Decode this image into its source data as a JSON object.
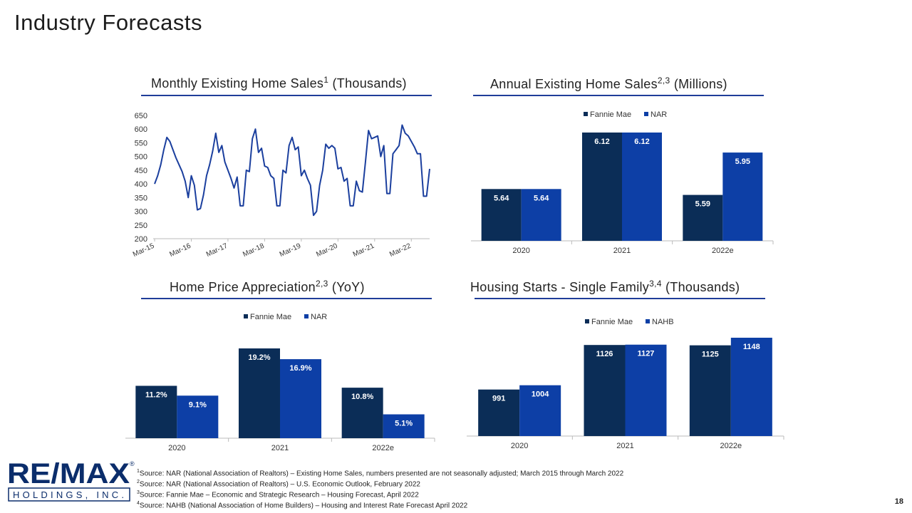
{
  "page": {
    "title": "Industry Forecasts",
    "page_number": "18"
  },
  "colors": {
    "fannie_mae": "#0b2d57",
    "nar": "#0d3fa6",
    "line": "#1b3f9e",
    "rule": "#1f3d99"
  },
  "charts": {
    "monthly": {
      "title": "Monthly Existing Home Sales",
      "sup": "1",
      "unit": "(Thousands)"
    },
    "annual": {
      "title": "Annual Existing Home Sales",
      "sup": "2,3",
      "unit": "(Millions)"
    },
    "hpa": {
      "title": "Home Price Appreciation",
      "sup": "2,3",
      "unit": "(YoY)"
    },
    "starts": {
      "title": "Housing Starts - Single Family",
      "sup": "3,4",
      "unit": "(Thousands)"
    }
  },
  "chart_data": [
    {
      "type": "line",
      "title": "Monthly Existing Home Sales (Thousands)",
      "x_tick_labels": [
        "Mar-15",
        "Mar-16",
        "Mar-17",
        "Mar-18",
        "Mar-19",
        "Mar-20",
        "Mar-21",
        "Mar-22"
      ],
      "ylim": [
        200,
        650
      ],
      "y_ticks": [
        200,
        250,
        300,
        350,
        400,
        450,
        500,
        550,
        600,
        650
      ],
      "series": [
        {
          "values": [
            400,
            430,
            470,
            525,
            570,
            555,
            525,
            495,
            470,
            445,
            410,
            350,
            430,
            395,
            305,
            310,
            360,
            430,
            470,
            520,
            585,
            515,
            540,
            480,
            450,
            420,
            385,
            425,
            320,
            320,
            450,
            445,
            565,
            600,
            515,
            530,
            465,
            460,
            430,
            420,
            320,
            320,
            450,
            440,
            540,
            570,
            525,
            535,
            430,
            450,
            420,
            395,
            285,
            300,
            395,
            450,
            545,
            530,
            540,
            530,
            455,
            460,
            410,
            420,
            320,
            320,
            410,
            375,
            370,
            480,
            595,
            565,
            570,
            575,
            500,
            540,
            365,
            365,
            510,
            525,
            540,
            615,
            585,
            575,
            555,
            535,
            510,
            510,
            355,
            355,
            455
          ]
        }
      ]
    },
    {
      "type": "bar",
      "title": "Annual Existing Home Sales (Millions)",
      "categories": [
        "2020",
        "2021",
        "2022e"
      ],
      "series": [
        {
          "name": "Fannie Mae",
          "values": [
            5.64,
            6.12,
            5.59
          ]
        },
        {
          "name": "NAR",
          "values": [
            5.64,
            6.12,
            5.95
          ]
        }
      ],
      "labels": [
        [
          "5.64",
          "6.12",
          "5.59"
        ],
        [
          "5.64",
          "6.12",
          "5.95"
        ]
      ],
      "legend": "top"
    },
    {
      "type": "bar",
      "title": "Home Price Appreciation (YoY)",
      "categories": [
        "2020",
        "2021",
        "2022e"
      ],
      "series": [
        {
          "name": "Fannie Mae",
          "values": [
            11.2,
            19.2,
            10.8
          ]
        },
        {
          "name": "NAR",
          "values": [
            9.1,
            16.9,
            5.1
          ]
        }
      ],
      "labels": [
        [
          "11.2%",
          "19.2%",
          "10.8%"
        ],
        [
          "9.1%",
          "16.9%",
          "5.1%"
        ]
      ],
      "legend": "top"
    },
    {
      "type": "bar",
      "title": "Housing Starts - Single Family (Thousands)",
      "categories": [
        "2020",
        "2021",
        "2022e"
      ],
      "series": [
        {
          "name": "Fannie Mae",
          "values": [
            991,
            1126,
            1125
          ]
        },
        {
          "name": "NAHB",
          "values": [
            1004,
            1127,
            1148
          ]
        }
      ],
      "labels": [
        [
          "991",
          "1126",
          "1125"
        ],
        [
          "1004",
          "1127",
          "1148"
        ]
      ],
      "legend": "top"
    }
  ],
  "logo": {
    "brand": "RE/MAX",
    "sub": "HOLDINGS, INC.",
    "mark": "®"
  },
  "footnotes": [
    {
      "num": "1",
      "text": "Source: NAR (National Association of Realtors) – Existing Home Sales, numbers presented are not seasonally adjusted; March 2015 through March 2022"
    },
    {
      "num": "2",
      "text": "Source: NAR (National Association of Realtors) – U.S. Economic Outlook, February 2022"
    },
    {
      "num": "3",
      "text": "Source: Fannie Mae – Economic and Strategic Research – Housing Forecast, April 2022"
    },
    {
      "num": "4",
      "text": "Source: NAHB (National Association of Home Builders) – Housing and Interest Rate Forecast April 2022"
    }
  ]
}
